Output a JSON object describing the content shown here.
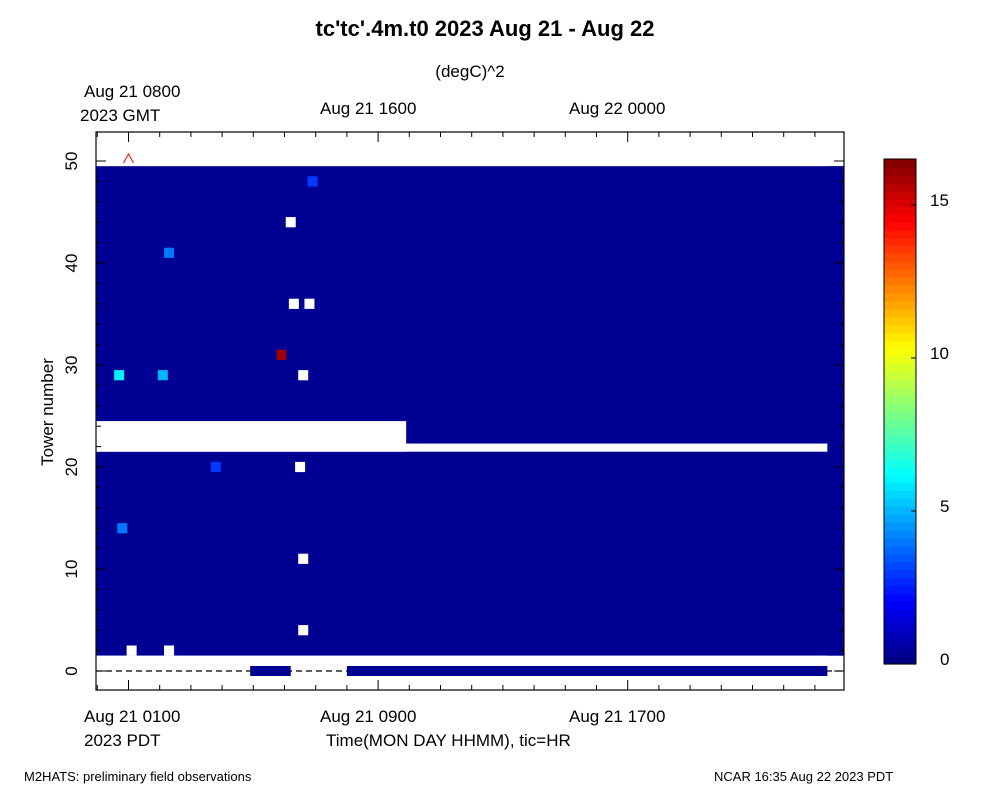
{
  "chart_data": {
    "type": "heatmap",
    "title": "tc'tc'.4m.t0 2023 Aug 21 - Aug 22",
    "colorbar_label": "(degC)^2",
    "ylabel": "Tower number",
    "xlabel": "Time(MON DAY HHMM), tic=HR",
    "ylim": [
      -2,
      52
    ],
    "x_hours_pdt": [
      -1.6,
      22.4
    ],
    "colorbar_range": [
      0,
      16.5
    ],
    "colorbar_ticks": [
      "0",
      "5",
      "10",
      "15"
    ],
    "y_ticks": [
      "0",
      "10",
      "20",
      "30",
      "40",
      "50"
    ],
    "top_axis_labels": [
      {
        "text": "Aug 21 0800",
        "text2": "2023 GMT"
      },
      {
        "text": "Aug 21 1600",
        "text2": ""
      },
      {
        "text": "Aug 22 0000",
        "text2": ""
      }
    ],
    "bottom_axis_labels": [
      {
        "text": "Aug 21 0100",
        "text2": "2023 PDT"
      },
      {
        "text": "Aug 21 0900",
        "text2": ""
      },
      {
        "text": "Aug 21 1700",
        "text2": ""
      }
    ],
    "background_value": 0.3,
    "missing_rows": [
      {
        "tower_from": 21.5,
        "tower_to": 24.5,
        "until_hour": 8.9
      },
      {
        "tower_from": 21.5,
        "tower_to": 22.3,
        "until_hour": 22.4
      },
      {
        "tower_from": 0.6,
        "tower_to": 1.5,
        "until_hour": 22.4
      },
      {
        "tower_from": 49.5,
        "tower_to": 52,
        "until_hour": 22.4
      }
    ],
    "tower0_segments": [
      {
        "from_hour": 3.9,
        "to_hour": 5.2
      },
      {
        "from_hour": 7.0,
        "to_hour": 22.4
      }
    ],
    "spots": [
      {
        "tower": 48,
        "hour": 5.9,
        "value": 3
      },
      {
        "tower": 44,
        "hour": 5.2,
        "value": -1
      },
      {
        "tower": 41,
        "hour": 1.3,
        "value": 4
      },
      {
        "tower": 36,
        "hour": 5.3,
        "value": -1
      },
      {
        "tower": 36,
        "hour": 5.8,
        "value": -1
      },
      {
        "tower": 31,
        "hour": 4.9,
        "value": 16
      },
      {
        "tower": 29,
        "hour": -0.3,
        "value": 6
      },
      {
        "tower": 29,
        "hour": 1.1,
        "value": 5
      },
      {
        "tower": 29,
        "hour": 5.6,
        "value": -1
      },
      {
        "tower": 20,
        "hour": 2.8,
        "value": 3
      },
      {
        "tower": 20,
        "hour": 5.5,
        "value": -1
      },
      {
        "tower": 14,
        "hour": -0.2,
        "value": 4
      },
      {
        "tower": 11,
        "hour": 5.6,
        "value": -1
      },
      {
        "tower": 4,
        "hour": 5.6,
        "value": -1
      },
      {
        "tower": 2,
        "hour": 0.1,
        "value": -1
      },
      {
        "tower": 2,
        "hour": 1.3,
        "value": -1
      }
    ],
    "missing_marker": {
      "tower": 50.2,
      "hour": 0
    }
  },
  "footer_left": "M2HATS: preliminary field observations",
  "footer_right": "NCAR 16:35 Aug 22 2023 PDT"
}
